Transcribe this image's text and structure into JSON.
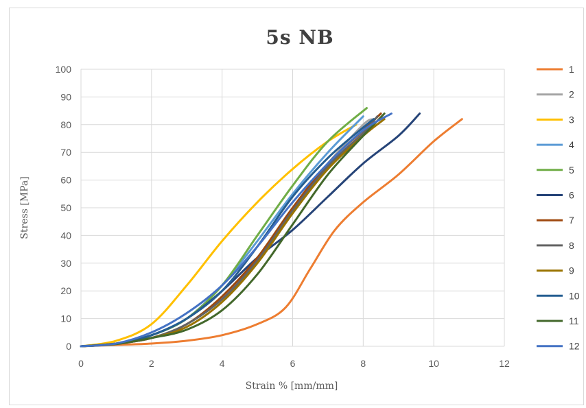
{
  "chart_data": {
    "type": "line",
    "title": "5s NB",
    "xlabel": "Strain % [mm/mm]",
    "ylabel": "Stress [MPa]",
    "xlim": [
      0,
      12
    ],
    "ylim": [
      0,
      100
    ],
    "xticks": [
      0,
      2,
      4,
      6,
      8,
      10,
      12
    ],
    "yticks": [
      0,
      10,
      20,
      30,
      40,
      50,
      60,
      70,
      80,
      90,
      100
    ],
    "grid": true,
    "legend_position": "right",
    "series": [
      {
        "name": "1",
        "color": "#ED7D31",
        "points": [
          [
            0,
            0
          ],
          [
            1,
            0.5
          ],
          [
            2,
            1
          ],
          [
            3,
            2
          ],
          [
            4,
            4
          ],
          [
            5,
            8
          ],
          [
            5.8,
            14
          ],
          [
            6.5,
            28
          ],
          [
            7.2,
            42
          ],
          [
            8,
            52
          ],
          [
            9,
            62
          ],
          [
            10,
            74
          ],
          [
            10.8,
            82
          ]
        ]
      },
      {
        "name": "2",
        "color": "#A5A5A5",
        "points": [
          [
            0,
            0
          ],
          [
            1,
            1
          ],
          [
            2,
            3
          ],
          [
            3,
            8
          ],
          [
            4,
            18
          ],
          [
            5,
            32
          ],
          [
            6,
            50
          ],
          [
            7,
            66
          ],
          [
            8,
            80
          ],
          [
            8.3,
            82
          ]
        ]
      },
      {
        "name": "3",
        "color": "#FFC000",
        "points": [
          [
            0,
            0
          ],
          [
            1,
            2
          ],
          [
            2,
            8
          ],
          [
            3,
            22
          ],
          [
            4,
            38
          ],
          [
            5,
            52
          ],
          [
            6,
            64
          ],
          [
            7,
            74
          ],
          [
            7.8,
            80
          ]
        ]
      },
      {
        "name": "4",
        "color": "#5B9BD5",
        "points": [
          [
            0,
            0
          ],
          [
            1,
            1
          ],
          [
            2,
            4
          ],
          [
            3,
            10
          ],
          [
            4,
            22
          ],
          [
            5,
            38
          ],
          [
            6,
            55
          ],
          [
            7,
            70
          ],
          [
            8,
            83
          ]
        ]
      },
      {
        "name": "5",
        "color": "#70AD47",
        "points": [
          [
            0,
            0
          ],
          [
            1,
            1
          ],
          [
            2,
            4
          ],
          [
            3,
            10
          ],
          [
            4,
            22
          ],
          [
            5,
            40
          ],
          [
            6,
            58
          ],
          [
            7,
            74
          ],
          [
            8.1,
            86
          ]
        ]
      },
      {
        "name": "6",
        "color": "#264478",
        "points": [
          [
            0,
            0
          ],
          [
            1,
            1
          ],
          [
            2,
            4
          ],
          [
            3,
            10
          ],
          [
            4,
            20
          ],
          [
            5,
            32
          ],
          [
            6,
            42
          ],
          [
            7,
            54
          ],
          [
            8,
            66
          ],
          [
            9,
            76
          ],
          [
            9.6,
            84
          ]
        ]
      },
      {
        "name": "7",
        "color": "#9E480E",
        "points": [
          [
            0,
            0
          ],
          [
            1,
            1
          ],
          [
            2,
            3
          ],
          [
            3,
            8
          ],
          [
            4,
            18
          ],
          [
            5,
            32
          ],
          [
            6,
            50
          ],
          [
            7,
            66
          ],
          [
            8,
            78
          ],
          [
            8.5,
            84
          ]
        ]
      },
      {
        "name": "8",
        "color": "#636363",
        "points": [
          [
            0,
            0
          ],
          [
            1,
            1
          ],
          [
            2,
            3
          ],
          [
            3,
            8
          ],
          [
            4,
            17
          ],
          [
            5,
            31
          ],
          [
            6,
            49
          ],
          [
            7,
            65
          ],
          [
            8,
            77
          ],
          [
            8.4,
            83
          ]
        ]
      },
      {
        "name": "9",
        "color": "#997300",
        "points": [
          [
            0,
            0
          ],
          [
            1,
            1
          ],
          [
            2,
            3
          ],
          [
            3,
            7
          ],
          [
            4,
            16
          ],
          [
            5,
            30
          ],
          [
            6,
            48
          ],
          [
            7,
            64
          ],
          [
            8,
            76
          ],
          [
            8.6,
            82
          ]
        ]
      },
      {
        "name": "10",
        "color": "#255E91",
        "points": [
          [
            0,
            0
          ],
          [
            1,
            1
          ],
          [
            2,
            4
          ],
          [
            3,
            10
          ],
          [
            4,
            20
          ],
          [
            5,
            36
          ],
          [
            6,
            54
          ],
          [
            7,
            68
          ],
          [
            8,
            79
          ],
          [
            8.3,
            82
          ]
        ]
      },
      {
        "name": "11",
        "color": "#43682B",
        "points": [
          [
            0,
            0
          ],
          [
            1,
            0.8
          ],
          [
            2,
            3
          ],
          [
            3,
            6
          ],
          [
            4,
            13
          ],
          [
            5,
            26
          ],
          [
            6,
            44
          ],
          [
            7,
            62
          ],
          [
            8,
            76
          ],
          [
            8.6,
            84
          ]
        ]
      },
      {
        "name": "12",
        "color": "#4472C4",
        "points": [
          [
            0,
            0
          ],
          [
            1,
            1
          ],
          [
            2,
            5
          ],
          [
            3,
            12
          ],
          [
            4,
            22
          ],
          [
            5,
            36
          ],
          [
            6,
            52
          ],
          [
            7,
            66
          ],
          [
            8,
            78
          ],
          [
            8.8,
            84
          ]
        ]
      }
    ]
  }
}
